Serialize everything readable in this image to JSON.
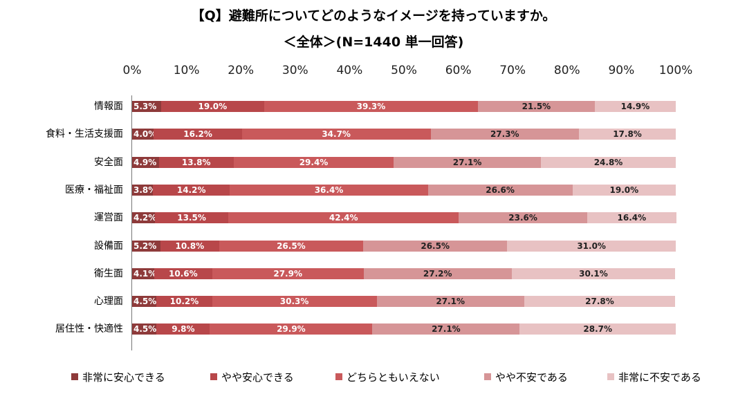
{
  "header": {
    "title": "【Q】避難所についてどのようなイメージを持っていますか。",
    "subtitle": "＜全体＞(N=1440 単一回答)"
  },
  "chart_data": {
    "type": "bar",
    "orientation": "horizontal",
    "stacked": "percent",
    "xlim": [
      0,
      100
    ],
    "x_ticks": [
      "0%",
      "10%",
      "20%",
      "30%",
      "40%",
      "50%",
      "60%",
      "70%",
      "80%",
      "90%",
      "100%"
    ],
    "legend_position": "bottom",
    "categories": [
      "情報面",
      "食料・生活支援面",
      "安全面",
      "医療・福祉面",
      "運営面",
      "設備面",
      "衛生面",
      "心理面",
      "居住性・快適性"
    ],
    "series": [
      {
        "name": "非常に安心できる",
        "color": "#8e3a3a",
        "values": [
          5.3,
          4.0,
          4.9,
          3.8,
          4.2,
          5.2,
          4.1,
          4.5,
          4.5
        ]
      },
      {
        "name": "やや安心できる",
        "color": "#b8474a",
        "values": [
          19.0,
          16.2,
          13.8,
          14.2,
          13.5,
          10.8,
          10.6,
          10.2,
          9.8
        ]
      },
      {
        "name": "どちらともいえない",
        "color": "#c9595b",
        "values": [
          39.3,
          34.7,
          29.4,
          36.4,
          42.4,
          26.5,
          27.9,
          30.3,
          29.9
        ]
      },
      {
        "name": "やや不安である",
        "color": "#d69597",
        "values": [
          21.5,
          27.3,
          27.1,
          26.6,
          23.6,
          26.5,
          27.2,
          27.1,
          27.1
        ]
      },
      {
        "name": "非常に不安である",
        "color": "#e8c2c3",
        "values": [
          14.9,
          17.8,
          24.8,
          19.0,
          16.4,
          31.0,
          30.1,
          27.8,
          28.7
        ]
      }
    ],
    "value_labels": [
      [
        "5.3%",
        "19.0%",
        "39.3%",
        "21.5%",
        "14.9%"
      ],
      [
        "4.0%",
        "16.2%",
        "34.7%",
        "27.3%",
        "17.8%"
      ],
      [
        "4.9%",
        "13.8%",
        "29.4%",
        "27.1%",
        "24.8%"
      ],
      [
        "3.8%",
        "14.2%",
        "36.4%",
        "26.6%",
        "19.0%"
      ],
      [
        "4.2%",
        "13.5%",
        "42.4%",
        "23.6%",
        "16.4%"
      ],
      [
        "5.2%",
        "10.8%",
        "26.5%",
        "26.5%",
        "31.0%"
      ],
      [
        "4.1%",
        "10.6%",
        "27.9%",
        "27.2%",
        "30.1%"
      ],
      [
        "4.5%",
        "10.2%",
        "30.3%",
        "27.1%",
        "27.8%"
      ],
      [
        "4.5%",
        "9.8%",
        "29.9%",
        "27.1%",
        "28.7%"
      ]
    ]
  }
}
